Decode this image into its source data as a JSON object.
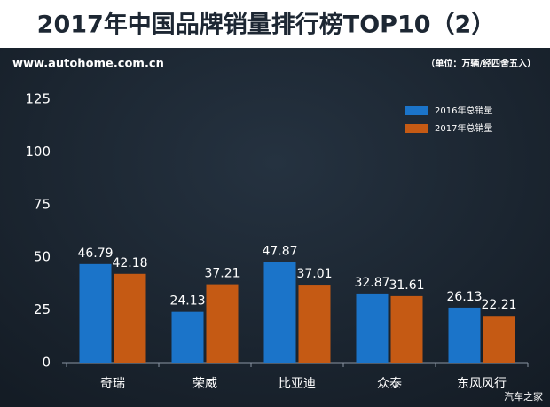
{
  "chart_data": {
    "type": "bar",
    "title": "2017年中国品牌销量排行榜TOP10（2）",
    "subtitle": "www.autohome.com.cn",
    "note": "（单位：万辆/经四舍五入）",
    "watermark": "汽车之家",
    "categories": [
      "奇瑞",
      "荣威",
      "比亚迪",
      "众泰",
      "东风风行"
    ],
    "series": [
      {
        "name": "2016年总销量",
        "color": "#1b74c9",
        "values": [
          46.79,
          24.13,
          47.87,
          32.87,
          26.13
        ]
      },
      {
        "name": "2017年总销量",
        "color": "#c55a14",
        "values": [
          42.18,
          37.21,
          37.01,
          31.61,
          22.21
        ]
      }
    ],
    "ylim": [
      0,
      125
    ],
    "yticks": [
      0,
      25,
      50,
      75,
      100,
      125
    ],
    "grid": false,
    "legend": "top-right"
  }
}
